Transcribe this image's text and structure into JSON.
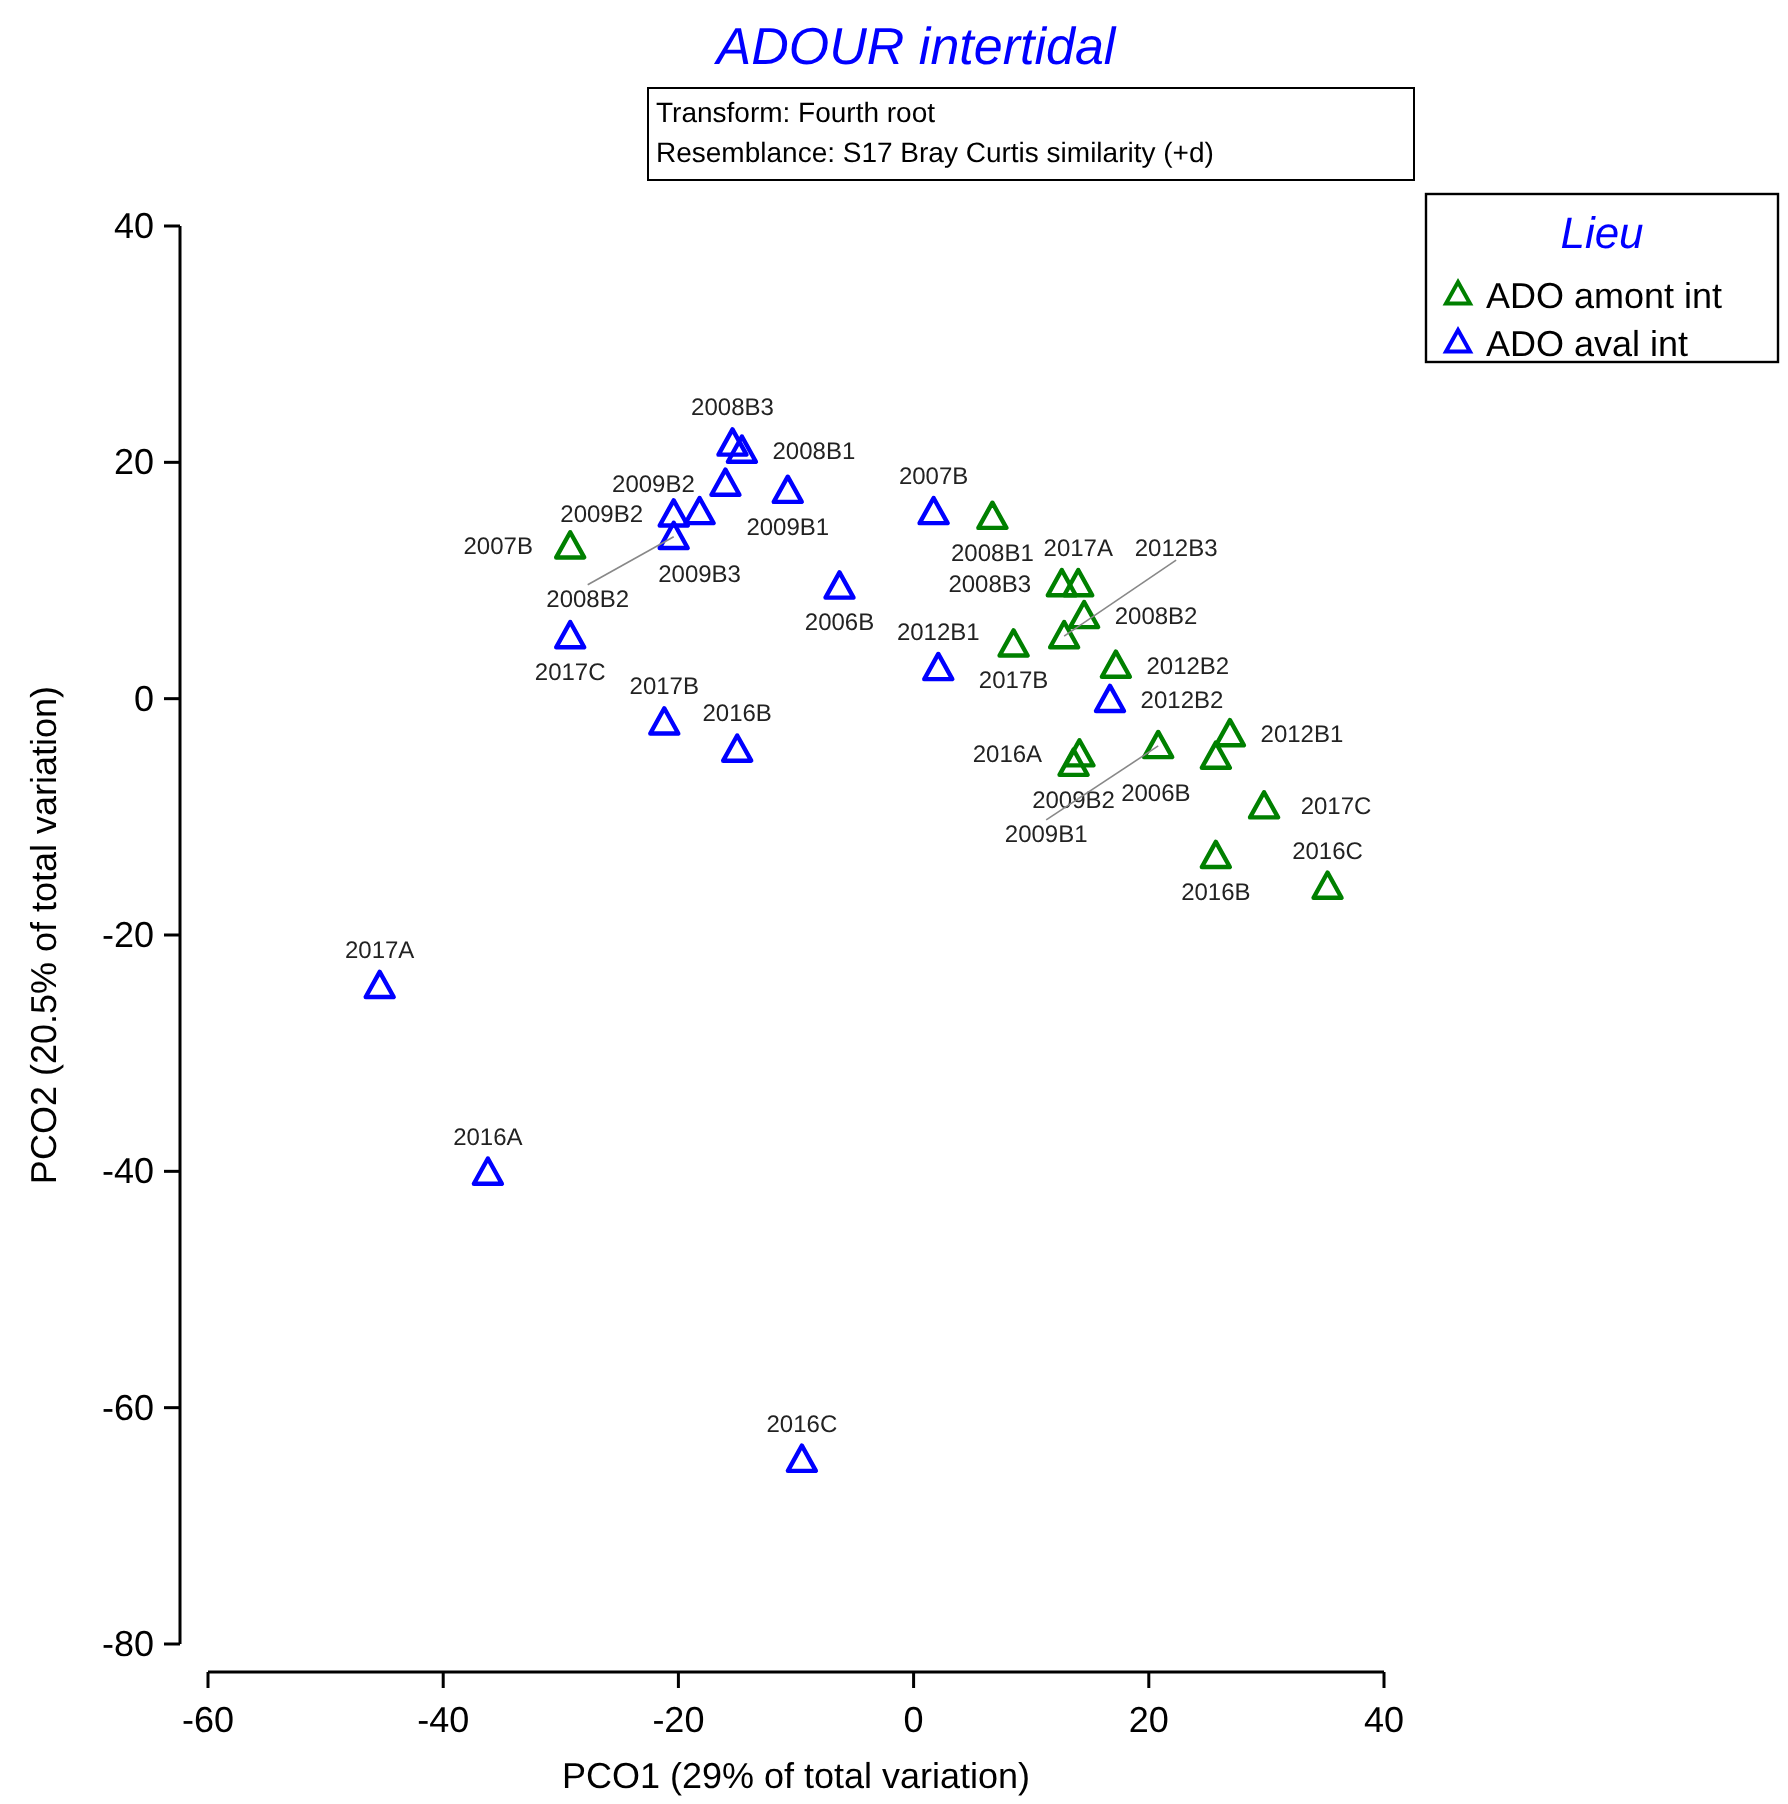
{
  "chart_data": {
    "type": "scatter",
    "title": "ADOUR intertidal",
    "annotations": [
      "Transform: Fourth root",
      "Resemblance: S17 Bray Curtis similarity (+d)",
      {
        "text": "2008B3",
        "x": -15.4,
        "y": 21.6
      },
      {
        "text": "2008B1",
        "x": -14.6,
        "y": 21
      },
      {
        "text": "2009B1",
        "x": -10.7,
        "y": 17.6
      },
      {
        "text": "2009B2",
        "x": -16,
        "y": 18.2
      },
      {
        "text": "2009B3",
        "x": -18.2,
        "y": 15.8
      },
      {
        "text": "2009B2",
        "x": -20.4,
        "y": 15.6
      },
      {
        "text": "2008B2",
        "x": -20.4,
        "y": 13.7
      },
      {
        "text": "2007B",
        "x": 1.7,
        "y": 15.8
      },
      {
        "text": "2006B",
        "x": -6.3,
        "y": 9.5
      },
      {
        "text": "2017C",
        "x": -29.2,
        "y": 5.3
      },
      {
        "text": "2012B1",
        "x": 2.1,
        "y": 2.6
      },
      {
        "text": "2017B",
        "x": -21.2,
        "y": -2
      },
      {
        "text": "2016B",
        "x": -15,
        "y": -4.3
      },
      {
        "text": "2017A",
        "x": -45.4,
        "y": -24.3
      },
      {
        "text": "2016A",
        "x": -36.2,
        "y": -40.1
      },
      {
        "text": "2016C",
        "x": -9.5,
        "y": -64.4
      },
      {
        "text": "2012B2",
        "x": 16.7,
        "y": -0.1
      },
      {
        "text": "2007B",
        "x": -29.2,
        "y": 12.9
      },
      {
        "text": "2008B1",
        "x": 6.7,
        "y": 15.4
      },
      {
        "text": "2017B",
        "x": 8.5,
        "y": 4.6
      },
      {
        "text": "2008B3",
        "x": 12.6,
        "y": 9.7
      },
      {
        "text": "2017A",
        "x": 14,
        "y": 9.7
      },
      {
        "text": "2008B2",
        "x": 14.5,
        "y": 7
      },
      {
        "text": "2012B3",
        "x": 12.8,
        "y": 5.3
      },
      {
        "text": "2012B2",
        "x": 17.2,
        "y": 2.8
      },
      {
        "text": "2016A",
        "x": 14.1,
        "y": -4.7
      },
      {
        "text": "2009B2",
        "x": 13.6,
        "y": -5.5
      },
      {
        "text": "2009B1",
        "x": 20.8,
        "y": -4
      },
      {
        "text": "2012B1",
        "x": 26.9,
        "y": -3
      },
      {
        "text": "2006B",
        "x": 25.7,
        "y": -4.9
      },
      {
        "text": "2017C",
        "x": 29.8,
        "y": -9.1
      },
      {
        "text": "2016B",
        "x": 25.7,
        "y": -13.3
      },
      {
        "text": "2016C",
        "x": 35.2,
        "y": -15.9
      }
    ],
    "xlabel": "PCO1 (29% of total variation)",
    "ylabel": "PCO2 (20.5% of total variation)",
    "legend_title": "Lieu",
    "legend": "top right",
    "marker": "triangle",
    "xlim": [
      -60,
      40
    ],
    "xticks": [
      -60,
      -40,
      -20,
      0,
      20,
      40
    ],
    "ylim": [
      -80,
      40
    ],
    "yticks": [
      -80,
      -60,
      -40,
      -20,
      0,
      20,
      40
    ],
    "series": [
      {
        "name": "ADO amont int",
        "color": "#008000",
        "x": [
          -29.2,
          6.7,
          8.5,
          12.6,
          14,
          14.5,
          12.8,
          17.2,
          14.1,
          13.6,
          20.8,
          26.9,
          25.7,
          29.8,
          25.7,
          35.2
        ],
        "values": [
          12.9,
          15.4,
          4.6,
          9.7,
          9.7,
          7,
          5.3,
          2.8,
          -4.7,
          -5.5,
          -4,
          -3,
          -4.9,
          -9.1,
          -13.3,
          -15.9
        ]
      },
      {
        "name": "ADO aval int",
        "color": "#0000ff",
        "x": [
          -15.4,
          -14.6,
          -10.7,
          -16,
          -18.2,
          -20.4,
          -20.4,
          1.7,
          -6.3,
          -29.2,
          2.1,
          -21.2,
          -15,
          -45.4,
          -36.2,
          -9.5,
          16.7
        ],
        "values": [
          21.6,
          21,
          17.6,
          18.2,
          15.8,
          15.6,
          13.7,
          15.8,
          9.5,
          5.3,
          2.6,
          -2,
          -4.3,
          -24.3,
          -40.1,
          -64.4,
          -0.1
        ]
      }
    ]
  }
}
